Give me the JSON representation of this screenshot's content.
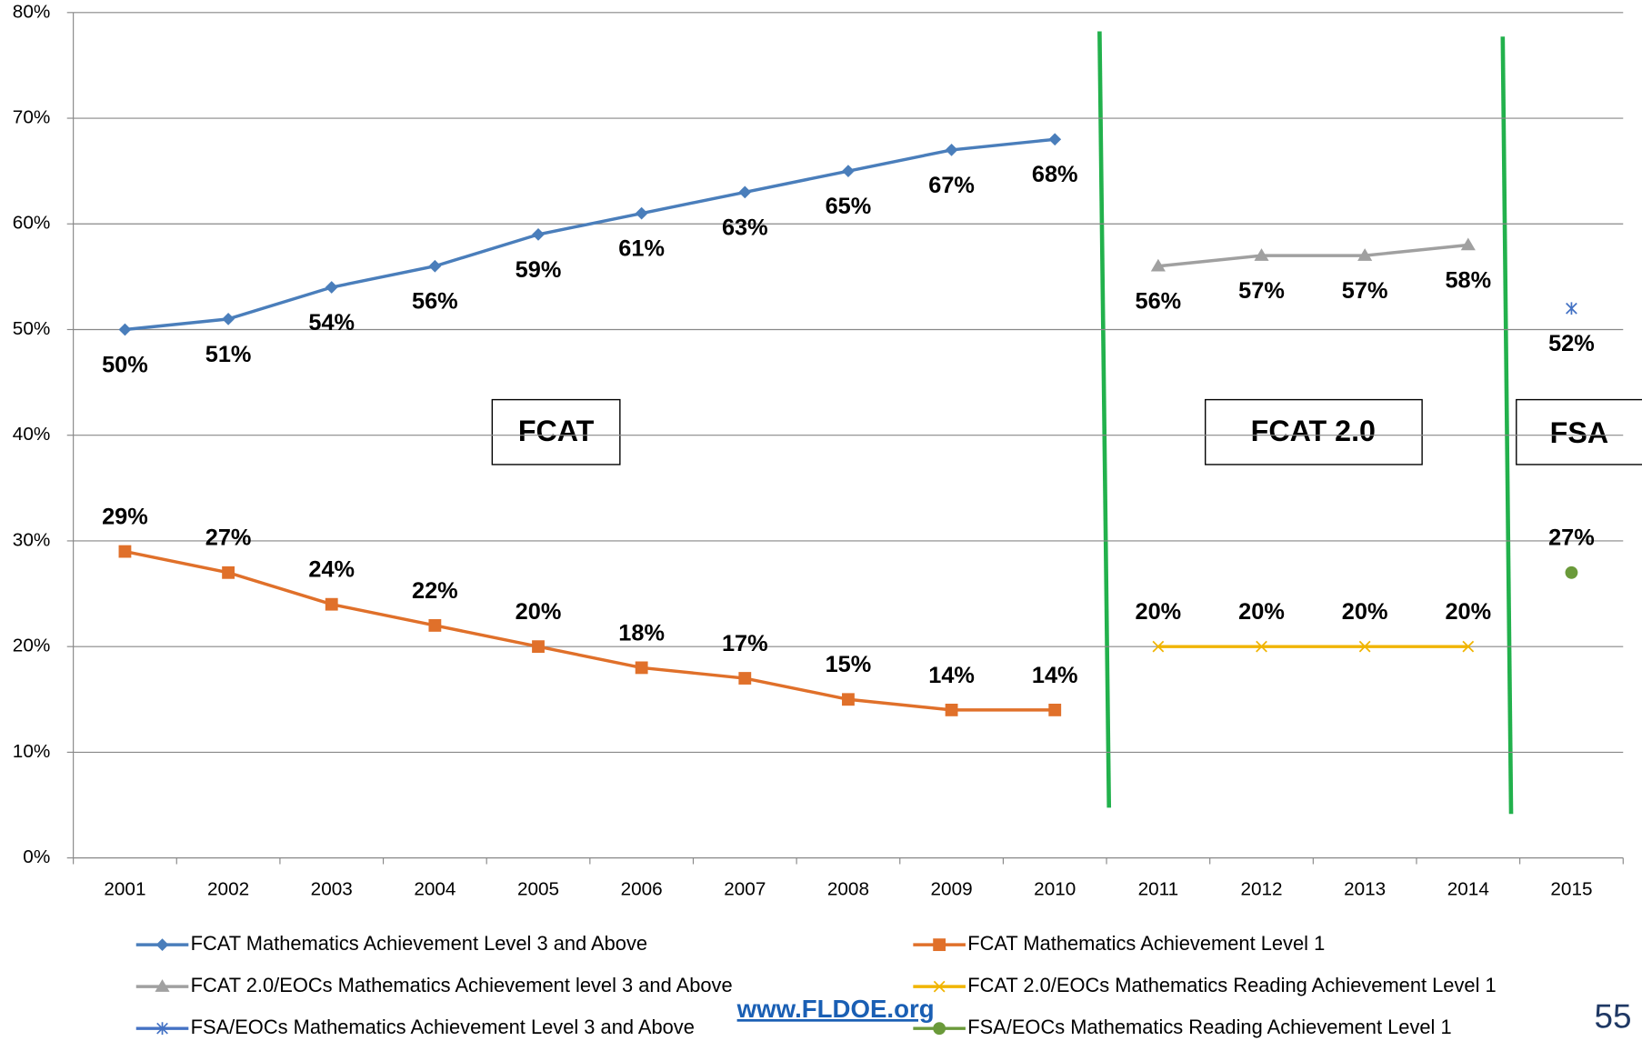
{
  "chart_data": {
    "type": "line",
    "categories": [
      "2001",
      "2002",
      "2003",
      "2004",
      "2005",
      "2006",
      "2007",
      "2008",
      "2009",
      "2010",
      "2011",
      "2012",
      "2013",
      "2014",
      "2015"
    ],
    "ylim": [
      0,
      80
    ],
    "yticks": [
      {
        "value": 0,
        "label": "0%"
      },
      {
        "value": 10,
        "label": "10%"
      },
      {
        "value": 20,
        "label": "20%"
      },
      {
        "value": 30,
        "label": "30%"
      },
      {
        "value": 40,
        "label": "40%"
      },
      {
        "value": 50,
        "label": "50%"
      },
      {
        "value": 60,
        "label": "60%"
      },
      {
        "value": 70,
        "label": "70%"
      },
      {
        "value": 80,
        "label": "80%"
      }
    ],
    "grid": true,
    "series": [
      {
        "name": "FCAT Mathematics Achievement Level 3 and Above",
        "color": "#4a7ebb",
        "marker": "diamond",
        "label_position": "below",
        "values": [
          50,
          51,
          54,
          56,
          59,
          61,
          63,
          65,
          67,
          68,
          null,
          null,
          null,
          null,
          null
        ],
        "value_labels": [
          "50%",
          "51%",
          "54%",
          "56%",
          "59%",
          "61%",
          "63%",
          "65%",
          "67%",
          "68%",
          null,
          null,
          null,
          null,
          null
        ]
      },
      {
        "name": "FCAT Mathematics Achievement Level 1",
        "color": "#e0702a",
        "marker": "square",
        "label_position": "above",
        "values": [
          29,
          27,
          24,
          22,
          20,
          18,
          17,
          15,
          14,
          14,
          null,
          null,
          null,
          null,
          null
        ],
        "value_labels": [
          "29%",
          "27%",
          "24%",
          "22%",
          "20%",
          "18%",
          "17%",
          "15%",
          "14%",
          "14%",
          null,
          null,
          null,
          null,
          null
        ]
      },
      {
        "name": "FCAT 2.0/EOCs Mathematics Achievement level 3 and Above",
        "color": "#a0a0a0",
        "marker": "triangle",
        "label_position": "below",
        "values": [
          null,
          null,
          null,
          null,
          null,
          null,
          null,
          null,
          null,
          null,
          56,
          57,
          57,
          58,
          null
        ],
        "value_labels": [
          null,
          null,
          null,
          null,
          null,
          null,
          null,
          null,
          null,
          null,
          "56%",
          "57%",
          "57%",
          "58%",
          null
        ]
      },
      {
        "name": "FCAT 2.0/EOCs Mathematics Reading Achievement Level 1",
        "color": "#f0b400",
        "marker": "x",
        "label_position": "above",
        "values": [
          null,
          null,
          null,
          null,
          null,
          null,
          null,
          null,
          null,
          null,
          20,
          20,
          20,
          20,
          null
        ],
        "value_labels": [
          null,
          null,
          null,
          null,
          null,
          null,
          null,
          null,
          null,
          null,
          "20%",
          "20%",
          "20%",
          "20%",
          null
        ]
      },
      {
        "name": "FSA/EOCs Mathematics Achievement Level 3 and Above",
        "color": "#4472c4",
        "marker": "star",
        "label_position": "below",
        "values": [
          null,
          null,
          null,
          null,
          null,
          null,
          null,
          null,
          null,
          null,
          null,
          null,
          null,
          null,
          52
        ],
        "value_labels": [
          null,
          null,
          null,
          null,
          null,
          null,
          null,
          null,
          null,
          null,
          null,
          null,
          null,
          null,
          "52%"
        ]
      },
      {
        "name": "FSA/EOCs Mathematics Reading Achievement Level 1",
        "color": "#6a9a3a",
        "marker": "circle",
        "label_position": "above",
        "values": [
          null,
          null,
          null,
          null,
          null,
          null,
          null,
          null,
          null,
          null,
          null,
          null,
          null,
          null,
          27
        ],
        "value_labels": [
          null,
          null,
          null,
          null,
          null,
          null,
          null,
          null,
          null,
          null,
          null,
          null,
          null,
          null,
          "27%"
        ]
      }
    ],
    "annotations": [
      "FCAT",
      "FCAT 2.0",
      "FSA"
    ],
    "footer": {
      "url": "www.FLDOE.org",
      "page": "55"
    }
  }
}
